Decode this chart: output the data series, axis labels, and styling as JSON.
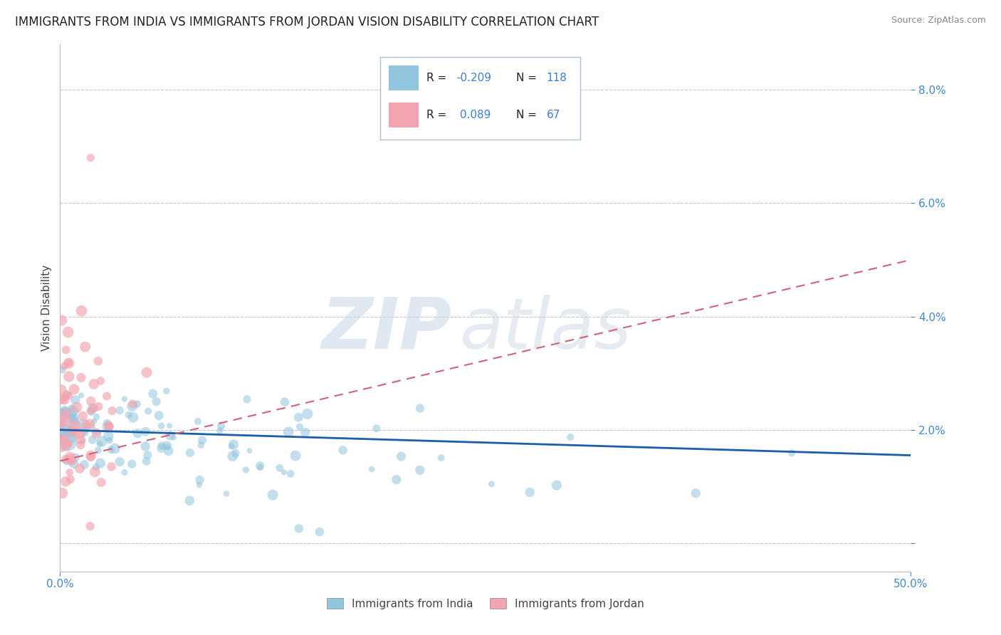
{
  "title": "IMMIGRANTS FROM INDIA VS IMMIGRANTS FROM JORDAN VISION DISABILITY CORRELATION CHART",
  "source": "Source: ZipAtlas.com",
  "ylabel": "Vision Disability",
  "y_ticks": [
    0.0,
    0.02,
    0.04,
    0.06,
    0.08
  ],
  "xlim": [
    0.0,
    0.5
  ],
  "ylim": [
    -0.005,
    0.088
  ],
  "india_R": -0.209,
  "india_N": 118,
  "jordan_R": 0.089,
  "jordan_N": 67,
  "india_color": "#92c5de",
  "jordan_color": "#f4a4b0",
  "india_line_color": "#1a5fa8",
  "jordan_line_color": "#d4607a",
  "india_line_start_y": 0.02,
  "india_line_end_y": 0.0155,
  "jordan_line_start_y": 0.0145,
  "jordan_line_end_y": 0.05,
  "watermark_text1": "ZIP",
  "watermark_text2": "atlas",
  "background_color": "#ffffff",
  "grid_color": "#c8c8c8",
  "title_fontsize": 12,
  "label_fontsize": 11,
  "tick_fontsize": 11,
  "legend_R_color": "#333333",
  "legend_N_color": "#3a7fd4",
  "right_tick_color": "#4488cc"
}
